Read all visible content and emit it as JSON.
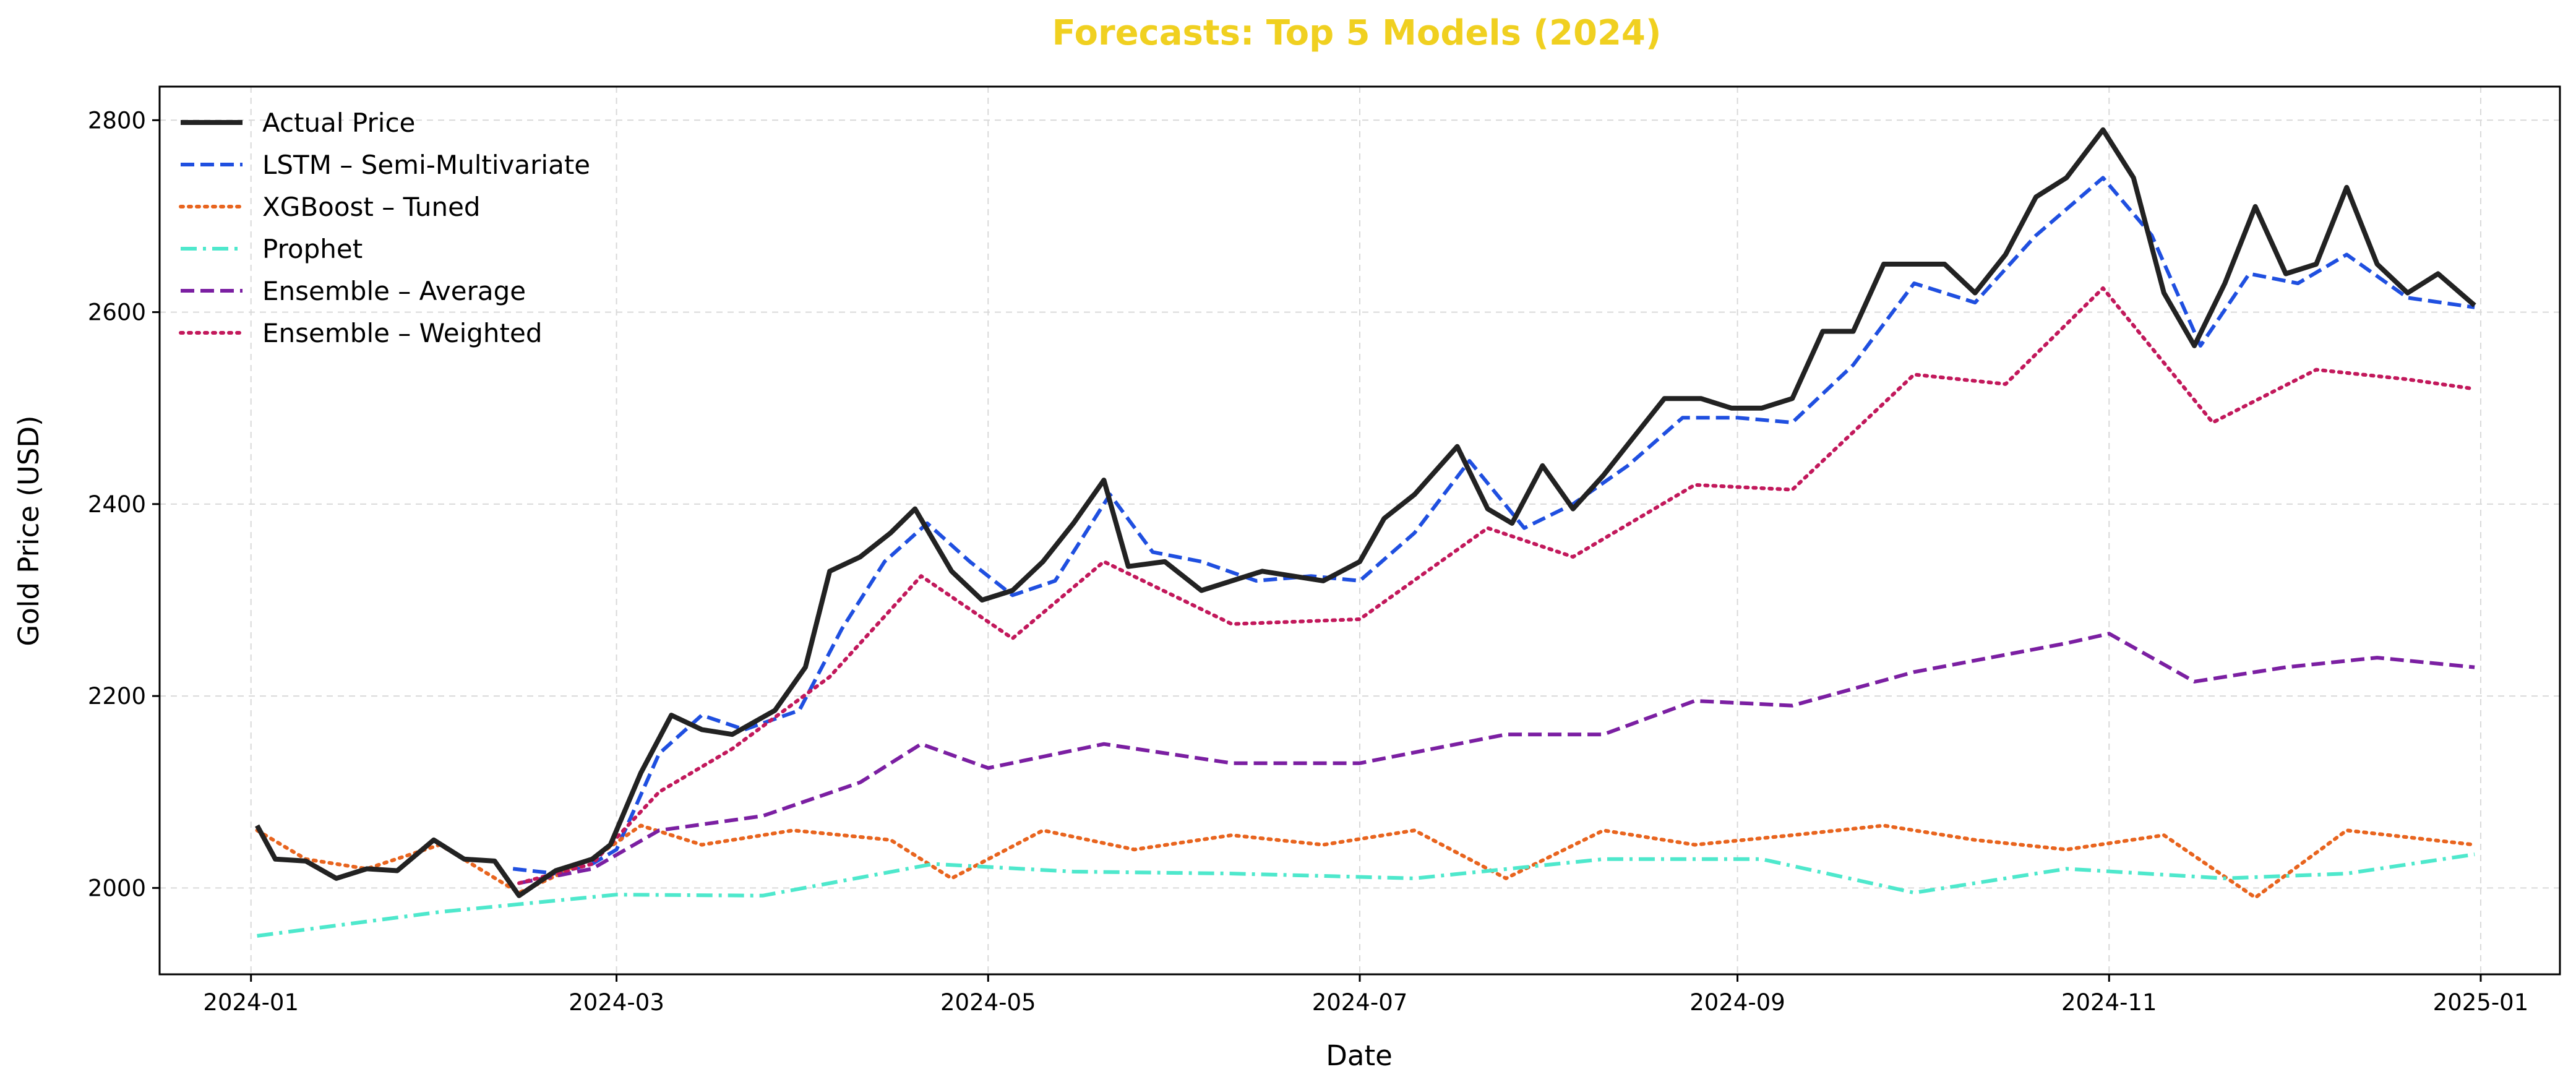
{
  "chart_data": {
    "type": "line",
    "title": "Forecasts: Top 5 Models (2024)",
    "title_color": "#F0D020",
    "xlabel": "Date",
    "ylabel": "Gold Price (USD)",
    "x_range": [
      "2023-12-17",
      "2025-01-14"
    ],
    "y_range": [
      1910,
      2835
    ],
    "x_ticks": [
      "2024-01",
      "2024-03",
      "2024-05",
      "2024-07",
      "2024-09",
      "2024-11",
      "2025-01"
    ],
    "y_ticks": [
      2000,
      2200,
      2400,
      2600,
      2800
    ],
    "grid": true,
    "legend_position": "top-left",
    "series": [
      {
        "name": "Actual Price",
        "color": "#222222",
        "dash": "solid",
        "points": [
          [
            "2024-01-02",
            2065
          ],
          [
            "2024-01-05",
            2030
          ],
          [
            "2024-01-10",
            2028
          ],
          [
            "2024-01-15",
            2010
          ],
          [
            "2024-01-20",
            2020
          ],
          [
            "2024-01-25",
            2018
          ],
          [
            "2024-01-31",
            2050
          ],
          [
            "2024-02-05",
            2030
          ],
          [
            "2024-02-10",
            2028
          ],
          [
            "2024-02-14",
            1992
          ],
          [
            "2024-02-20",
            2018
          ],
          [
            "2024-02-26",
            2030
          ],
          [
            "2024-02-29",
            2045
          ],
          [
            "2024-03-05",
            2120
          ],
          [
            "2024-03-10",
            2180
          ],
          [
            "2024-03-15",
            2165
          ],
          [
            "2024-03-20",
            2160
          ],
          [
            "2024-03-27",
            2185
          ],
          [
            "2024-04-01",
            2230
          ],
          [
            "2024-04-05",
            2330
          ],
          [
            "2024-04-10",
            2345
          ],
          [
            "2024-04-15",
            2370
          ],
          [
            "2024-04-19",
            2395
          ],
          [
            "2024-04-25",
            2330
          ],
          [
            "2024-04-30",
            2300
          ],
          [
            "2024-05-05",
            2310
          ],
          [
            "2024-05-10",
            2340
          ],
          [
            "2024-05-15",
            2380
          ],
          [
            "2024-05-20",
            2425
          ],
          [
            "2024-05-24",
            2335
          ],
          [
            "2024-05-30",
            2340
          ],
          [
            "2024-06-05",
            2310
          ],
          [
            "2024-06-10",
            2320
          ],
          [
            "2024-06-15",
            2330
          ],
          [
            "2024-06-20",
            2325
          ],
          [
            "2024-06-25",
            2320
          ],
          [
            "2024-07-01",
            2340
          ],
          [
            "2024-07-05",
            2385
          ],
          [
            "2024-07-10",
            2410
          ],
          [
            "2024-07-17",
            2460
          ],
          [
            "2024-07-22",
            2395
          ],
          [
            "2024-07-26",
            2380
          ],
          [
            "2024-07-31",
            2440
          ],
          [
            "2024-08-05",
            2395
          ],
          [
            "2024-08-10",
            2430
          ],
          [
            "2024-08-15",
            2470
          ],
          [
            "2024-08-20",
            2510
          ],
          [
            "2024-08-26",
            2510
          ],
          [
            "2024-08-31",
            2500
          ],
          [
            "2024-09-05",
            2500
          ],
          [
            "2024-09-10",
            2510
          ],
          [
            "2024-09-15",
            2580
          ],
          [
            "2024-09-20",
            2580
          ],
          [
            "2024-09-25",
            2650
          ],
          [
            "2024-09-30",
            2650
          ],
          [
            "2024-10-05",
            2650
          ],
          [
            "2024-10-10",
            2620
          ],
          [
            "2024-10-15",
            2660
          ],
          [
            "2024-10-20",
            2720
          ],
          [
            "2024-10-25",
            2740
          ],
          [
            "2024-10-31",
            2790
          ],
          [
            "2024-11-05",
            2740
          ],
          [
            "2024-11-10",
            2620
          ],
          [
            "2024-11-15",
            2565
          ],
          [
            "2024-11-20",
            2630
          ],
          [
            "2024-11-25",
            2710
          ],
          [
            "2024-11-30",
            2640
          ],
          [
            "2024-12-05",
            2650
          ],
          [
            "2024-12-10",
            2730
          ],
          [
            "2024-12-15",
            2650
          ],
          [
            "2024-12-20",
            2620
          ],
          [
            "2024-12-25",
            2640
          ],
          [
            "2024-12-31",
            2607
          ]
        ]
      },
      {
        "name": "LSTM – Semi-Multivariate",
        "color": "#1F4FE0",
        "dash": "dashed",
        "points": [
          [
            "2024-02-13",
            2020
          ],
          [
            "2024-02-20",
            2015
          ],
          [
            "2024-02-26",
            2025
          ],
          [
            "2024-03-01",
            2040
          ],
          [
            "2024-03-08",
            2140
          ],
          [
            "2024-03-15",
            2180
          ],
          [
            "2024-03-22",
            2165
          ],
          [
            "2024-03-31",
            2185
          ],
          [
            "2024-04-07",
            2270
          ],
          [
            "2024-04-14",
            2340
          ],
          [
            "2024-04-21",
            2380
          ],
          [
            "2024-04-28",
            2340
          ],
          [
            "2024-05-05",
            2305
          ],
          [
            "2024-05-12",
            2320
          ],
          [
            "2024-05-21",
            2410
          ],
          [
            "2024-05-28",
            2350
          ],
          [
            "2024-06-05",
            2340
          ],
          [
            "2024-06-14",
            2320
          ],
          [
            "2024-06-23",
            2325
          ],
          [
            "2024-07-01",
            2320
          ],
          [
            "2024-07-10",
            2370
          ],
          [
            "2024-07-19",
            2445
          ],
          [
            "2024-07-28",
            2375
          ],
          [
            "2024-08-05",
            2400
          ],
          [
            "2024-08-14",
            2440
          ],
          [
            "2024-08-23",
            2490
          ],
          [
            "2024-09-01",
            2490
          ],
          [
            "2024-09-10",
            2485
          ],
          [
            "2024-09-20",
            2545
          ],
          [
            "2024-09-30",
            2630
          ],
          [
            "2024-10-10",
            2610
          ],
          [
            "2024-10-20",
            2680
          ],
          [
            "2024-10-31",
            2740
          ],
          [
            "2024-11-08",
            2680
          ],
          [
            "2024-11-16",
            2565
          ],
          [
            "2024-11-24",
            2640
          ],
          [
            "2024-12-02",
            2630
          ],
          [
            "2024-12-10",
            2660
          ],
          [
            "2024-12-20",
            2615
          ],
          [
            "2024-12-31",
            2605
          ]
        ]
      },
      {
        "name": "XGBoost – Tuned",
        "color": "#E8641E",
        "dash": "dotted",
        "points": [
          [
            "2024-01-02",
            2060
          ],
          [
            "2024-01-10",
            2030
          ],
          [
            "2024-01-20",
            2020
          ],
          [
            "2024-02-01",
            2045
          ],
          [
            "2024-02-14",
            1995
          ],
          [
            "2024-02-26",
            2030
          ],
          [
            "2024-03-05",
            2065
          ],
          [
            "2024-03-15",
            2045
          ],
          [
            "2024-03-30",
            2060
          ],
          [
            "2024-04-15",
            2050
          ],
          [
            "2024-04-25",
            2010
          ],
          [
            "2024-05-10",
            2060
          ],
          [
            "2024-05-25",
            2040
          ],
          [
            "2024-06-10",
            2055
          ],
          [
            "2024-06-25",
            2045
          ],
          [
            "2024-07-10",
            2060
          ],
          [
            "2024-07-25",
            2010
          ],
          [
            "2024-08-10",
            2060
          ],
          [
            "2024-08-25",
            2045
          ],
          [
            "2024-09-10",
            2055
          ],
          [
            "2024-09-25",
            2065
          ],
          [
            "2024-10-10",
            2050
          ],
          [
            "2024-10-25",
            2040
          ],
          [
            "2024-11-10",
            2055
          ],
          [
            "2024-11-25",
            1990
          ],
          [
            "2024-12-10",
            2060
          ],
          [
            "2024-12-31",
            2045
          ]
        ]
      },
      {
        "name": "Prophet",
        "color": "#4EE8CC",
        "dash": "dashdot",
        "points": [
          [
            "2024-01-02",
            1950
          ],
          [
            "2024-02-01",
            1975
          ],
          [
            "2024-03-01",
            1993
          ],
          [
            "2024-03-25",
            1992
          ],
          [
            "2024-04-22",
            2025
          ],
          [
            "2024-05-15",
            2017
          ],
          [
            "2024-06-10",
            2015
          ],
          [
            "2024-07-10",
            2010
          ],
          [
            "2024-08-10",
            2030
          ],
          [
            "2024-09-05",
            2030
          ],
          [
            "2024-09-30",
            1995
          ],
          [
            "2024-10-25",
            2020
          ],
          [
            "2024-11-20",
            2010
          ],
          [
            "2024-12-10",
            2015
          ],
          [
            "2024-12-31",
            2035
          ]
        ]
      },
      {
        "name": "Ensemble – Average",
        "color": "#7B1FA2",
        "dash": "dashed",
        "points": [
          [
            "2024-02-14",
            2005
          ],
          [
            "2024-02-26",
            2020
          ],
          [
            "2024-03-08",
            2060
          ],
          [
            "2024-03-25",
            2075
          ],
          [
            "2024-04-10",
            2110
          ],
          [
            "2024-04-20",
            2150
          ],
          [
            "2024-05-01",
            2125
          ],
          [
            "2024-05-20",
            2150
          ],
          [
            "2024-06-10",
            2130
          ],
          [
            "2024-07-01",
            2130
          ],
          [
            "2024-07-25",
            2160
          ],
          [
            "2024-08-10",
            2160
          ],
          [
            "2024-08-25",
            2195
          ],
          [
            "2024-09-10",
            2190
          ],
          [
            "2024-09-30",
            2225
          ],
          [
            "2024-10-25",
            2255
          ],
          [
            "2024-11-01",
            2265
          ],
          [
            "2024-11-15",
            2215
          ],
          [
            "2024-11-30",
            2230
          ],
          [
            "2024-12-15",
            2240
          ],
          [
            "2024-12-31",
            2230
          ]
        ]
      },
      {
        "name": "Ensemble – Weighted",
        "color": "#C2185B",
        "dash": "dotted",
        "points": [
          [
            "2024-02-14",
            2005
          ],
          [
            "2024-02-26",
            2025
          ],
          [
            "2024-03-08",
            2100
          ],
          [
            "2024-03-20",
            2145
          ],
          [
            "2024-04-05",
            2220
          ],
          [
            "2024-04-20",
            2325
          ],
          [
            "2024-05-05",
            2260
          ],
          [
            "2024-05-20",
            2340
          ],
          [
            "2024-06-10",
            2275
          ],
          [
            "2024-07-01",
            2280
          ],
          [
            "2024-07-22",
            2375
          ],
          [
            "2024-08-05",
            2345
          ],
          [
            "2024-08-25",
            2420
          ],
          [
            "2024-09-10",
            2415
          ],
          [
            "2024-09-30",
            2535
          ],
          [
            "2024-10-15",
            2525
          ],
          [
            "2024-10-31",
            2625
          ],
          [
            "2024-11-18",
            2485
          ],
          [
            "2024-12-05",
            2540
          ],
          [
            "2024-12-20",
            2530
          ],
          [
            "2024-12-31",
            2520
          ]
        ]
      }
    ]
  }
}
